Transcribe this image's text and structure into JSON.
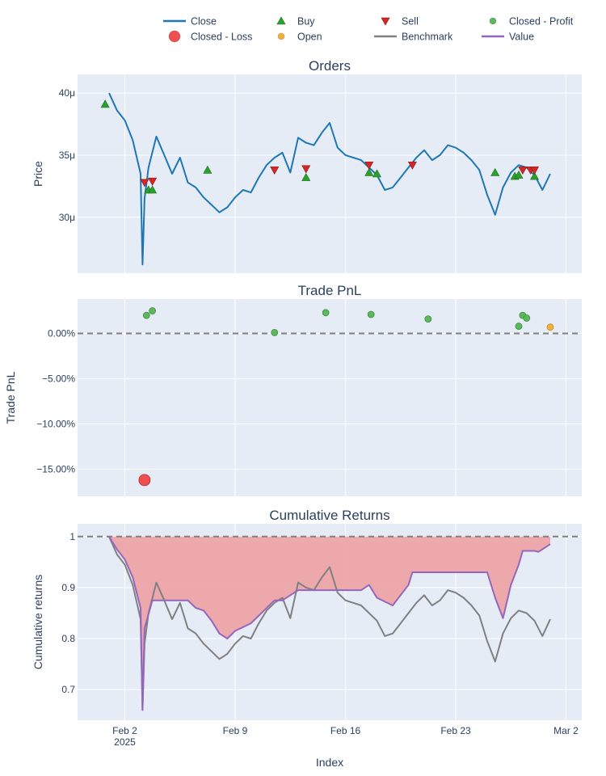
{
  "legend": {
    "items": [
      {
        "label": "Close",
        "symbol": "line",
        "color": "#1f77b4"
      },
      {
        "label": "Buy",
        "symbol": "triangle-up",
        "color": "#2ca02c"
      },
      {
        "label": "Sell",
        "symbol": "triangle-down",
        "color": "#d62728"
      },
      {
        "label": "Closed - Profit",
        "symbol": "circle",
        "color": "#5cb85c"
      },
      {
        "label": "Closed - Loss",
        "symbol": "circle-big",
        "color": "#ef4f4f"
      },
      {
        "label": "Open",
        "symbol": "circle-small",
        "color": "#f0b13a"
      },
      {
        "label": "Benchmark",
        "symbol": "line",
        "color": "#808080"
      },
      {
        "label": "Value",
        "symbol": "line",
        "color": "#9467bd"
      }
    ]
  },
  "colors": {
    "plot_bg": "#e5ecf6",
    "grid": "#ffffff",
    "close": "#1f77b4",
    "buy": "#2ca02c",
    "sell": "#d62728",
    "profit": "#5cb85c",
    "loss": "#ef4f4f",
    "open": "#f0b13a",
    "benchmark": "#808080",
    "value": "#9467bd",
    "drawdown_fill": "#eda4a8",
    "refline": "#808080"
  },
  "x_axis": {
    "title": "Index",
    "range": [
      "2025-01-30",
      "2025-03-03"
    ],
    "ticks": [
      {
        "date": "2025-02-02",
        "label": "Feb 2",
        "sublabel": "2025"
      },
      {
        "date": "2025-02-09",
        "label": "Feb 9",
        "sublabel": ""
      },
      {
        "date": "2025-02-16",
        "label": "Feb 16",
        "sublabel": ""
      },
      {
        "date": "2025-02-23",
        "label": "Feb 23",
        "sublabel": ""
      },
      {
        "date": "2025-03-02",
        "label": "Mar 2",
        "sublabel": ""
      }
    ]
  },
  "chart_data": [
    {
      "type": "line",
      "title": "Orders",
      "ylabel": "Price",
      "ylim": [
        2.55e-05,
        4.15e-05
      ],
      "yticks": [
        {
          "value": 3e-05,
          "label": "30μ"
        },
        {
          "value": 3.5e-05,
          "label": "35μ"
        },
        {
          "value": 4e-05,
          "label": "40μ"
        }
      ],
      "series": [
        {
          "name": "Close",
          "x": [
            "2025-02-01",
            "2025-02-01 12:00",
            "2025-02-02",
            "2025-02-02 12:00",
            "2025-02-03",
            "2025-02-03 03:00",
            "2025-02-03 06:00",
            "2025-02-03 12:00",
            "2025-02-04",
            "2025-02-04 12:00",
            "2025-02-05",
            "2025-02-05 12:00",
            "2025-02-06",
            "2025-02-06 12:00",
            "2025-02-07",
            "2025-02-07 12:00",
            "2025-02-08",
            "2025-02-08 12:00",
            "2025-02-09",
            "2025-02-09 12:00",
            "2025-02-10",
            "2025-02-10 12:00",
            "2025-02-11",
            "2025-02-11 12:00",
            "2025-02-12",
            "2025-02-12 12:00",
            "2025-02-13",
            "2025-02-13 12:00",
            "2025-02-14",
            "2025-02-14 12:00",
            "2025-02-15",
            "2025-02-15 12:00",
            "2025-02-16",
            "2025-02-16 12:00",
            "2025-02-17",
            "2025-02-17 12:00",
            "2025-02-18",
            "2025-02-18 12:00",
            "2025-02-19",
            "2025-02-19 12:00",
            "2025-02-20",
            "2025-02-20 12:00",
            "2025-02-21",
            "2025-02-21 12:00",
            "2025-02-22",
            "2025-02-22 12:00",
            "2025-02-23",
            "2025-02-23 12:00",
            "2025-02-24",
            "2025-02-24 12:00",
            "2025-02-25",
            "2025-02-25 12:00",
            "2025-02-26",
            "2025-02-26 12:00",
            "2025-02-27",
            "2025-02-27 12:00",
            "2025-02-28",
            "2025-02-28 12:00",
            "2025-03-01"
          ],
          "y": [
            4e-05,
            3.86e-05,
            3.78e-05,
            3.62e-05,
            3.35e-05,
            2.62e-05,
            3.15e-05,
            3.4e-05,
            3.65e-05,
            3.5e-05,
            3.35e-05,
            3.48e-05,
            3.28e-05,
            3.24e-05,
            3.16e-05,
            3.1e-05,
            3.04e-05,
            3.08e-05,
            3.16e-05,
            3.22e-05,
            3.2e-05,
            3.32e-05,
            3.42e-05,
            3.48e-05,
            3.52e-05,
            3.36e-05,
            3.64e-05,
            3.6e-05,
            3.58e-05,
            3.68e-05,
            3.76e-05,
            3.56e-05,
            3.5e-05,
            3.48e-05,
            3.46e-05,
            3.4e-05,
            3.34e-05,
            3.22e-05,
            3.24e-05,
            3.32e-05,
            3.4e-05,
            3.48e-05,
            3.54e-05,
            3.46e-05,
            3.5e-05,
            3.58e-05,
            3.56e-05,
            3.52e-05,
            3.46e-05,
            3.38e-05,
            3.18e-05,
            3.02e-05,
            3.24e-05,
            3.36e-05,
            3.42e-05,
            3.4e-05,
            3.34e-05,
            3.22e-05,
            3.35e-05
          ]
        }
      ],
      "buys": {
        "name": "Buy",
        "x": [
          "2025-01-31 18:00",
          "2025-02-03 12:00",
          "2025-02-03 18:00",
          "2025-02-07 06:00",
          "2025-02-13 12:00",
          "2025-02-17 12:00",
          "2025-02-18 00:00",
          "2025-02-25 12:00",
          "2025-02-26 18:00",
          "2025-02-27 00:00",
          "2025-02-28 00:00"
        ],
        "y": [
          3.91e-05,
          3.22e-05,
          3.22e-05,
          3.38e-05,
          3.32e-05,
          3.36e-05,
          3.35e-05,
          3.36e-05,
          3.33e-05,
          3.34e-05,
          3.33e-05
        ]
      },
      "sells": {
        "name": "Sell",
        "x": [
          "2025-02-03 06:00",
          "2025-02-03 18:00",
          "2025-02-11 12:00",
          "2025-02-13 12:00",
          "2025-02-17 12:00",
          "2025-02-20 06:00",
          "2025-02-27 06:00",
          "2025-02-27 18:00",
          "2025-02-28 00:00"
        ],
        "y": [
          3.28e-05,
          3.29e-05,
          3.38e-05,
          3.39e-05,
          3.42e-05,
          3.42e-05,
          3.38e-05,
          3.38e-05,
          3.38e-05
        ]
      }
    },
    {
      "type": "scatter",
      "title": "Trade PnL",
      "ylabel": "Trade PnL",
      "ylim": [
        -18.0,
        3.8
      ],
      "yticks": [
        {
          "value": 0,
          "label": "0.00%"
        },
        {
          "value": -5,
          "label": "−5.00%"
        },
        {
          "value": -10,
          "label": "−10.00%"
        },
        {
          "value": -15,
          "label": "−15.00%"
        }
      ],
      "refline": 0,
      "series": [
        {
          "name": "Closed - Profit",
          "x": [
            "2025-02-03 09:00",
            "2025-02-03 18:00",
            "2025-02-11 12:00",
            "2025-02-14 18:00",
            "2025-02-17 15:00",
            "2025-02-21 06:00",
            "2025-02-27 00:00",
            "2025-02-27 06:00",
            "2025-02-27 12:00"
          ],
          "y": [
            2.0,
            2.5,
            0.1,
            2.3,
            2.1,
            1.6,
            0.8,
            2.0,
            1.7
          ]
        },
        {
          "name": "Closed - Loss",
          "x": [
            "2025-02-03 06:00"
          ],
          "y": [
            -16.2
          ]
        },
        {
          "name": "Open",
          "x": [
            "2025-03-01"
          ],
          "y": [
            0.7
          ]
        }
      ]
    },
    {
      "type": "line",
      "title": "Cumulative Returns",
      "ylabel": "Cumulative returns",
      "ylim": [
        0.64,
        1.025
      ],
      "yticks": [
        {
          "value": 0.7,
          "label": "0.7"
        },
        {
          "value": 0.8,
          "label": "0.8"
        },
        {
          "value": 0.9,
          "label": "0.9"
        },
        {
          "value": 1,
          "label": "1"
        }
      ],
      "refline": 1,
      "series": [
        {
          "name": "Benchmark",
          "x": [
            "2025-02-01",
            "2025-02-01 12:00",
            "2025-02-02",
            "2025-02-02 12:00",
            "2025-02-03",
            "2025-02-03 03:00",
            "2025-02-03 06:00",
            "2025-02-03 12:00",
            "2025-02-04",
            "2025-02-04 12:00",
            "2025-02-05",
            "2025-02-05 12:00",
            "2025-02-06",
            "2025-02-06 12:00",
            "2025-02-07",
            "2025-02-07 12:00",
            "2025-02-08",
            "2025-02-08 12:00",
            "2025-02-09",
            "2025-02-09 12:00",
            "2025-02-10",
            "2025-02-10 12:00",
            "2025-02-11",
            "2025-02-11 12:00",
            "2025-02-12",
            "2025-02-12 12:00",
            "2025-02-13",
            "2025-02-13 12:00",
            "2025-02-14",
            "2025-02-14 12:00",
            "2025-02-15",
            "2025-02-15 12:00",
            "2025-02-16",
            "2025-02-16 12:00",
            "2025-02-17",
            "2025-02-17 12:00",
            "2025-02-18",
            "2025-02-18 12:00",
            "2025-02-19",
            "2025-02-19 12:00",
            "2025-02-20",
            "2025-02-20 12:00",
            "2025-02-21",
            "2025-02-21 12:00",
            "2025-02-22",
            "2025-02-22 12:00",
            "2025-02-23",
            "2025-02-23 12:00",
            "2025-02-24",
            "2025-02-24 12:00",
            "2025-02-25",
            "2025-02-25 12:00",
            "2025-02-26",
            "2025-02-26 12:00",
            "2025-02-27",
            "2025-02-27 12:00",
            "2025-02-28",
            "2025-02-28 12:00",
            "2025-03-01"
          ],
          "y": [
            1.0,
            0.965,
            0.945,
            0.905,
            0.838,
            0.66,
            0.79,
            0.85,
            0.91,
            0.875,
            0.838,
            0.87,
            0.82,
            0.81,
            0.79,
            0.775,
            0.76,
            0.77,
            0.79,
            0.805,
            0.8,
            0.83,
            0.855,
            0.87,
            0.88,
            0.84,
            0.91,
            0.9,
            0.895,
            0.92,
            0.94,
            0.89,
            0.875,
            0.87,
            0.865,
            0.85,
            0.835,
            0.805,
            0.81,
            0.83,
            0.85,
            0.87,
            0.885,
            0.865,
            0.875,
            0.895,
            0.89,
            0.88,
            0.865,
            0.845,
            0.795,
            0.755,
            0.81,
            0.84,
            0.855,
            0.85,
            0.835,
            0.805,
            0.838
          ]
        },
        {
          "name": "Value",
          "x": [
            "2025-02-01",
            "2025-02-01 12:00",
            "2025-02-02",
            "2025-02-02 12:00",
            "2025-02-03",
            "2025-02-03 03:00",
            "2025-02-03 06:00",
            "2025-02-03 18:00",
            "2025-02-05",
            "2025-02-06",
            "2025-02-06 12:00",
            "2025-02-07",
            "2025-02-07 12:00",
            "2025-02-08",
            "2025-02-08 12:00",
            "2025-02-09",
            "2025-02-10",
            "2025-02-11 12:00",
            "2025-02-12",
            "2025-02-13",
            "2025-02-13 12:00",
            "2025-02-17",
            "2025-02-17 12:00",
            "2025-02-18",
            "2025-02-19",
            "2025-02-20",
            "2025-02-20 06:00",
            "2025-02-25",
            "2025-02-25 12:00",
            "2025-02-26",
            "2025-02-26 12:00",
            "2025-02-27",
            "2025-02-27 06:00",
            "2025-02-28",
            "2025-02-28 06:00",
            "2025-03-01"
          ],
          "y": [
            1.0,
            0.975,
            0.955,
            0.92,
            0.86,
            0.66,
            0.82,
            0.875,
            0.875,
            0.875,
            0.86,
            0.855,
            0.835,
            0.81,
            0.8,
            0.815,
            0.83,
            0.875,
            0.875,
            0.895,
            0.895,
            0.895,
            0.905,
            0.88,
            0.865,
            0.905,
            0.93,
            0.93,
            0.88,
            0.84,
            0.905,
            0.945,
            0.972,
            0.972,
            0.97,
            0.985
          ]
        }
      ]
    }
  ]
}
